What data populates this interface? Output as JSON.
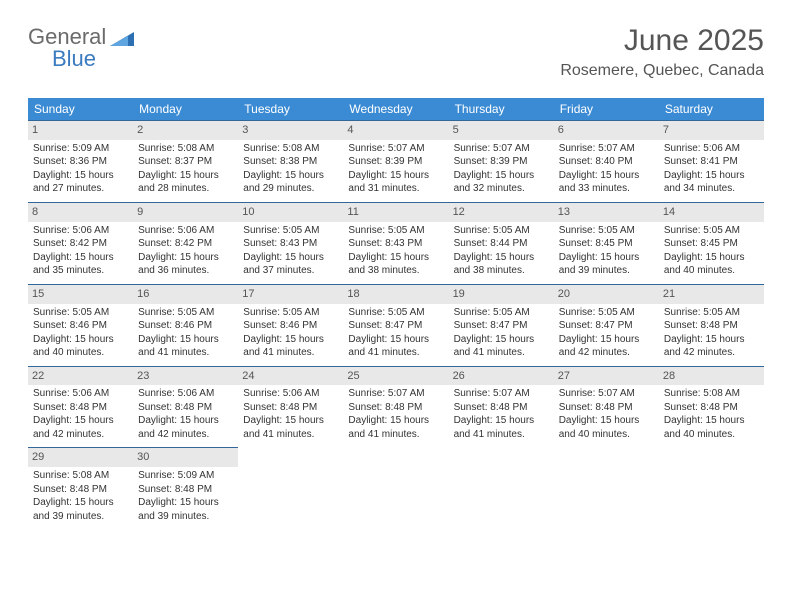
{
  "logo": {
    "text1": "General",
    "text2": "Blue"
  },
  "title": {
    "month": "June 2025",
    "location": "Rosemere, Quebec, Canada"
  },
  "dow": [
    "Sunday",
    "Monday",
    "Tuesday",
    "Wednesday",
    "Thursday",
    "Friday",
    "Saturday"
  ],
  "colors": {
    "header_bg": "#3b8bd4",
    "header_fg": "#ffffff",
    "day_head_bg": "#e8e8e8",
    "border": "#336699",
    "logo_gray": "#6b6b6b",
    "logo_blue": "#3b7bbf",
    "logo_tri": "#2d6fb3"
  },
  "weeks": [
    [
      {
        "num": "1",
        "sunrise": "Sunrise: 5:09 AM",
        "sunset": "Sunset: 8:36 PM",
        "daylight": "Daylight: 15 hours and 27 minutes."
      },
      {
        "num": "2",
        "sunrise": "Sunrise: 5:08 AM",
        "sunset": "Sunset: 8:37 PM",
        "daylight": "Daylight: 15 hours and 28 minutes."
      },
      {
        "num": "3",
        "sunrise": "Sunrise: 5:08 AM",
        "sunset": "Sunset: 8:38 PM",
        "daylight": "Daylight: 15 hours and 29 minutes."
      },
      {
        "num": "4",
        "sunrise": "Sunrise: 5:07 AM",
        "sunset": "Sunset: 8:39 PM",
        "daylight": "Daylight: 15 hours and 31 minutes."
      },
      {
        "num": "5",
        "sunrise": "Sunrise: 5:07 AM",
        "sunset": "Sunset: 8:39 PM",
        "daylight": "Daylight: 15 hours and 32 minutes."
      },
      {
        "num": "6",
        "sunrise": "Sunrise: 5:07 AM",
        "sunset": "Sunset: 8:40 PM",
        "daylight": "Daylight: 15 hours and 33 minutes."
      },
      {
        "num": "7",
        "sunrise": "Sunrise: 5:06 AM",
        "sunset": "Sunset: 8:41 PM",
        "daylight": "Daylight: 15 hours and 34 minutes."
      }
    ],
    [
      {
        "num": "8",
        "sunrise": "Sunrise: 5:06 AM",
        "sunset": "Sunset: 8:42 PM",
        "daylight": "Daylight: 15 hours and 35 minutes."
      },
      {
        "num": "9",
        "sunrise": "Sunrise: 5:06 AM",
        "sunset": "Sunset: 8:42 PM",
        "daylight": "Daylight: 15 hours and 36 minutes."
      },
      {
        "num": "10",
        "sunrise": "Sunrise: 5:05 AM",
        "sunset": "Sunset: 8:43 PM",
        "daylight": "Daylight: 15 hours and 37 minutes."
      },
      {
        "num": "11",
        "sunrise": "Sunrise: 5:05 AM",
        "sunset": "Sunset: 8:43 PM",
        "daylight": "Daylight: 15 hours and 38 minutes."
      },
      {
        "num": "12",
        "sunrise": "Sunrise: 5:05 AM",
        "sunset": "Sunset: 8:44 PM",
        "daylight": "Daylight: 15 hours and 38 minutes."
      },
      {
        "num": "13",
        "sunrise": "Sunrise: 5:05 AM",
        "sunset": "Sunset: 8:45 PM",
        "daylight": "Daylight: 15 hours and 39 minutes."
      },
      {
        "num": "14",
        "sunrise": "Sunrise: 5:05 AM",
        "sunset": "Sunset: 8:45 PM",
        "daylight": "Daylight: 15 hours and 40 minutes."
      }
    ],
    [
      {
        "num": "15",
        "sunrise": "Sunrise: 5:05 AM",
        "sunset": "Sunset: 8:46 PM",
        "daylight": "Daylight: 15 hours and 40 minutes."
      },
      {
        "num": "16",
        "sunrise": "Sunrise: 5:05 AM",
        "sunset": "Sunset: 8:46 PM",
        "daylight": "Daylight: 15 hours and 41 minutes."
      },
      {
        "num": "17",
        "sunrise": "Sunrise: 5:05 AM",
        "sunset": "Sunset: 8:46 PM",
        "daylight": "Daylight: 15 hours and 41 minutes."
      },
      {
        "num": "18",
        "sunrise": "Sunrise: 5:05 AM",
        "sunset": "Sunset: 8:47 PM",
        "daylight": "Daylight: 15 hours and 41 minutes."
      },
      {
        "num": "19",
        "sunrise": "Sunrise: 5:05 AM",
        "sunset": "Sunset: 8:47 PM",
        "daylight": "Daylight: 15 hours and 41 minutes."
      },
      {
        "num": "20",
        "sunrise": "Sunrise: 5:05 AM",
        "sunset": "Sunset: 8:47 PM",
        "daylight": "Daylight: 15 hours and 42 minutes."
      },
      {
        "num": "21",
        "sunrise": "Sunrise: 5:05 AM",
        "sunset": "Sunset: 8:48 PM",
        "daylight": "Daylight: 15 hours and 42 minutes."
      }
    ],
    [
      {
        "num": "22",
        "sunrise": "Sunrise: 5:06 AM",
        "sunset": "Sunset: 8:48 PM",
        "daylight": "Daylight: 15 hours and 42 minutes."
      },
      {
        "num": "23",
        "sunrise": "Sunrise: 5:06 AM",
        "sunset": "Sunset: 8:48 PM",
        "daylight": "Daylight: 15 hours and 42 minutes."
      },
      {
        "num": "24",
        "sunrise": "Sunrise: 5:06 AM",
        "sunset": "Sunset: 8:48 PM",
        "daylight": "Daylight: 15 hours and 41 minutes."
      },
      {
        "num": "25",
        "sunrise": "Sunrise: 5:07 AM",
        "sunset": "Sunset: 8:48 PM",
        "daylight": "Daylight: 15 hours and 41 minutes."
      },
      {
        "num": "26",
        "sunrise": "Sunrise: 5:07 AM",
        "sunset": "Sunset: 8:48 PM",
        "daylight": "Daylight: 15 hours and 41 minutes."
      },
      {
        "num": "27",
        "sunrise": "Sunrise: 5:07 AM",
        "sunset": "Sunset: 8:48 PM",
        "daylight": "Daylight: 15 hours and 40 minutes."
      },
      {
        "num": "28",
        "sunrise": "Sunrise: 5:08 AM",
        "sunset": "Sunset: 8:48 PM",
        "daylight": "Daylight: 15 hours and 40 minutes."
      }
    ],
    [
      {
        "num": "29",
        "sunrise": "Sunrise: 5:08 AM",
        "sunset": "Sunset: 8:48 PM",
        "daylight": "Daylight: 15 hours and 39 minutes."
      },
      {
        "num": "30",
        "sunrise": "Sunrise: 5:09 AM",
        "sunset": "Sunset: 8:48 PM",
        "daylight": "Daylight: 15 hours and 39 minutes."
      },
      {
        "empty": true
      },
      {
        "empty": true
      },
      {
        "empty": true
      },
      {
        "empty": true
      },
      {
        "empty": true
      }
    ]
  ]
}
